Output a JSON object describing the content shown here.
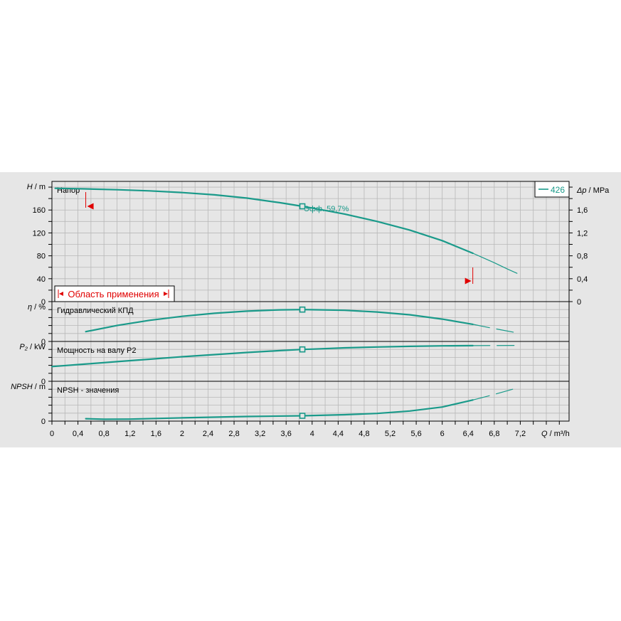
{
  "chart_data": {
    "type": "line",
    "x_axis": {
      "label_symbol": "Q",
      "label_unit": " / m³/h",
      "ticks": [
        "0",
        "0,4",
        "0,8",
        "1,2",
        "1,6",
        "2",
        "2,4",
        "2,8",
        "3,2",
        "3,6",
        "4",
        "4,4",
        "4,8",
        "5,2",
        "5,6",
        "6",
        "6,4",
        "6,8",
        "7,2"
      ],
      "range": [
        0,
        7.95
      ]
    },
    "legend": {
      "entries": [
        "426"
      ],
      "position": "top-right"
    },
    "duty_point_q": 3.85,
    "panels": [
      {
        "key": "head",
        "symbol": "H",
        "unit": " / m",
        "title": "Напор",
        "ylim": [
          0,
          210
        ],
        "yticks": [
          "40",
          "80",
          "120",
          "160"
        ],
        "right_axis": {
          "symbol": "Δp",
          "unit": " / MPa",
          "ticks": [
            "0",
            "0,4",
            "0,8",
            "1,2",
            "1,6"
          ]
        },
        "series": [
          {
            "name": "426",
            "x": [
              0.05,
              0.5,
              1.0,
              1.5,
              2.0,
              2.5,
              3.0,
              3.5,
              3.85,
              4.0,
              4.5,
              5.0,
              5.5,
              6.0,
              6.47
            ],
            "y": [
              198,
              197,
              195.5,
              193.5,
              190.5,
              186.5,
              180.8,
              172.8,
              166.5,
              163.5,
              153,
              140,
              125,
              106.5,
              84.5
            ]
          },
          {
            "x": [
              6.47,
              6.6,
              6.8,
              7.0,
              7.15
            ],
            "y": [
              84.5,
              78,
              68,
              57,
              49.5
            ],
            "style": "extrapolated"
          }
        ],
        "efficiency_label": "Эфф.  59,7%",
        "application_range": {
          "label": "Область применения",
          "q_min": 0.52,
          "q_max": 6.47
        }
      },
      {
        "key": "efficiency",
        "symbol": "η",
        "unit": " / %",
        "title": "Гидравлический КПД",
        "ylim": [
          0,
          65
        ],
        "series": [
          {
            "name": "426",
            "x": [
              0.52,
              1.0,
              1.5,
              2.0,
              2.5,
              3.0,
              3.5,
              3.85,
              4.0,
              4.5,
              5.0,
              5.5,
              6.0,
              6.47
            ],
            "y": [
              16,
              26,
              34.5,
              41,
              46,
              49.5,
              51.5,
              52,
              51.8,
              50.8,
              48,
              43.5,
              36.5,
              28
            ]
          },
          {
            "x": [
              6.47,
              6.7,
              6.9,
              7.15
            ],
            "y": [
              28,
              23,
              19,
              14
            ],
            "style": "extrapolated"
          }
        ]
      },
      {
        "key": "power",
        "symbol": "P₂",
        "unit": " / kW",
        "title": "Мощность на валу P2",
        "ylim": [
          0,
          65
        ],
        "series": [
          {
            "name": "426",
            "x": [
              0.0,
              0.5,
              1.0,
              1.5,
              2.0,
              2.5,
              3.0,
              3.5,
              3.85,
              4.0,
              4.5,
              5.0,
              5.5,
              6.0,
              6.47
            ],
            "y": [
              24,
              28,
              32,
              36,
              40,
              43.5,
              47,
              50,
              52,
              52.5,
              54.5,
              56,
              57,
              57.8,
              58.2
            ]
          },
          {
            "x": [
              6.47,
              7.15
            ],
            "y": [
              58.2,
              58.5
            ],
            "style": "extrapolated"
          }
        ]
      },
      {
        "key": "npsh",
        "symbol": "NPSH",
        "unit": " / m",
        "title": "NPSH - значения",
        "ylim": [
          0,
          65
        ],
        "series": [
          {
            "name": "426",
            "x": [
              0.52,
              0.8,
              1.2,
              2.0,
              3.0,
              3.85,
              4.5,
              5.0,
              5.5,
              6.0,
              6.47
            ],
            "y": [
              4,
              3,
              3.3,
              5.3,
              7.5,
              8.7,
              10.5,
              12.5,
              16.5,
              23,
              34.5
            ]
          },
          {
            "x": [
              6.47,
              6.8,
              7.15
            ],
            "y": [
              34.5,
              43.5,
              54
            ],
            "style": "extrapolated"
          }
        ]
      }
    ]
  },
  "colors": {
    "curve": "#1a9a8a",
    "range_marker": "#e00000",
    "grid": "#b8b8b8",
    "panel_bg": "#e6e6e6",
    "plot_bg": "#e6e6e6"
  }
}
